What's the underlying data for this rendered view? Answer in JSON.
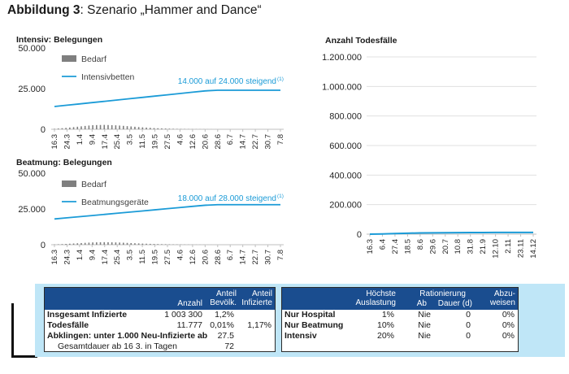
{
  "page_title": {
    "bold": "Abbildung 3",
    "rest": ": Szenario „Hammer and Dance“"
  },
  "x_dates_a": [
    "16.3",
    "24.3",
    "1.4",
    "9.4",
    "17.4",
    "25.4",
    "3.5",
    "11.5",
    "19.5",
    "27.5",
    "4.6",
    "12.6",
    "20.6",
    "28.6",
    "6.7",
    "14.7",
    "22.7",
    "30.7",
    "7.8"
  ],
  "x_dates_b": [
    "16.3",
    "6.4",
    "27.4",
    "18.5",
    "8.6",
    "29.6",
    "20.7",
    "10.8",
    "31.8",
    "21.9",
    "12.10",
    "2.11",
    "23.11",
    "14.12"
  ],
  "colors": {
    "capacity_line": "#1b9bd7",
    "demand_bar": "#7f7f7f",
    "deaths_line": "#1b9bd7",
    "table_header": "#1a4d8f",
    "band": "#bfe6f7"
  },
  "chart_data": [
    {
      "type": "area",
      "title": "Intensiv: Belegungen",
      "y_ticks": [
        "0",
        "25.000",
        "50.000"
      ],
      "ylim": [
        0,
        50000
      ],
      "legend": [
        "Bedarf",
        "Intensivbetten"
      ],
      "annotation": "14.000 auf 24.000 steigend",
      "annotation_sup": "(1)",
      "series": [
        {
          "name": "Intensivbetten",
          "values": [
            14000,
            14800,
            15600,
            16400,
            17200,
            18000,
            18800,
            19600,
            20400,
            21200,
            22000,
            22800,
            23600,
            24000,
            24000,
            24000,
            24000,
            24000,
            24000
          ]
        },
        {
          "name": "Bedarf",
          "values": [
            300,
            900,
            1700,
            2500,
            2700,
            2400,
            1800,
            1200,
            700,
            400,
            200,
            100,
            50,
            0,
            0,
            0,
            0,
            0,
            0
          ]
        }
      ]
    },
    {
      "type": "area",
      "title": "Beatmung: Belegungen",
      "y_ticks": [
        "0",
        "25.000",
        "50.000"
      ],
      "ylim": [
        0,
        50000
      ],
      "legend": [
        "Bedarf",
        "Beatmungsgeräte"
      ],
      "annotation": "18.000 auf 28.000 steigend",
      "annotation_sup": "(1)",
      "series": [
        {
          "name": "Beatmungsgeräte",
          "values": [
            18000,
            18800,
            19600,
            20400,
            21200,
            22000,
            22800,
            23600,
            24400,
            25200,
            26000,
            26800,
            27600,
            28000,
            28000,
            28000,
            28000,
            28000,
            28000
          ]
        },
        {
          "name": "Bedarf",
          "values": [
            200,
            600,
            1100,
            1600,
            1800,
            1600,
            1200,
            800,
            500,
            300,
            150,
            80,
            40,
            0,
            0,
            0,
            0,
            0,
            0
          ]
        }
      ]
    },
    {
      "type": "line",
      "title": "Anzahl Todesfälle",
      "y_ticks": [
        "0",
        "200.000",
        "400.000",
        "600.000",
        "800.000",
        "1.000.000",
        "1.200.000"
      ],
      "ylim": [
        0,
        1200000
      ],
      "series": [
        {
          "values": [
            0,
            1500,
            4000,
            6500,
            8000,
            9000,
            9800,
            10400,
            10900,
            11300,
            11500,
            11650,
            11720,
            11777
          ]
        }
      ]
    }
  ],
  "table_left": {
    "headers": {
      "anzahl": "Anzahl",
      "anteil_bev": "Anteil\nBevölk.",
      "anteil_inf": "Anteil\nInfizierte"
    },
    "rows": [
      {
        "label": "Insgesamt Infizierte",
        "anzahl": "1 003 300",
        "bev": "1,2%",
        "inf": ""
      },
      {
        "label": "Todesfälle",
        "anzahl": "11.777",
        "bev": "0,01%",
        "inf": "1,17%"
      },
      {
        "label": "Abklingen: unter 1.000 Neu-Infizierte ab",
        "anzahl": "",
        "bev": "27.5",
        "inf": ""
      },
      {
        "label": "Gesamtdauer ab 16 3. in Tagen",
        "anzahl": "",
        "bev": "72",
        "inf": ""
      }
    ]
  },
  "table_right": {
    "headers": {
      "hoechste": "Höchste\nAuslastung",
      "rationierung": "Rationierung",
      "ab": "Ab",
      "dauer": "Dauer (d)",
      "abzu": "Abzu-\nweisen"
    },
    "rows": [
      {
        "label": "Nur Hospital",
        "auslastung": "1%",
        "ab": "Nie",
        "dauer": "0",
        "abzu": "0%"
      },
      {
        "label": "Nur Beatmung",
        "auslastung": "10%",
        "ab": "Nie",
        "dauer": "0",
        "abzu": "0%"
      },
      {
        "label": "Intensiv",
        "auslastung": "20%",
        "ab": "Nie",
        "dauer": "0",
        "abzu": "0%"
      }
    ]
  }
}
